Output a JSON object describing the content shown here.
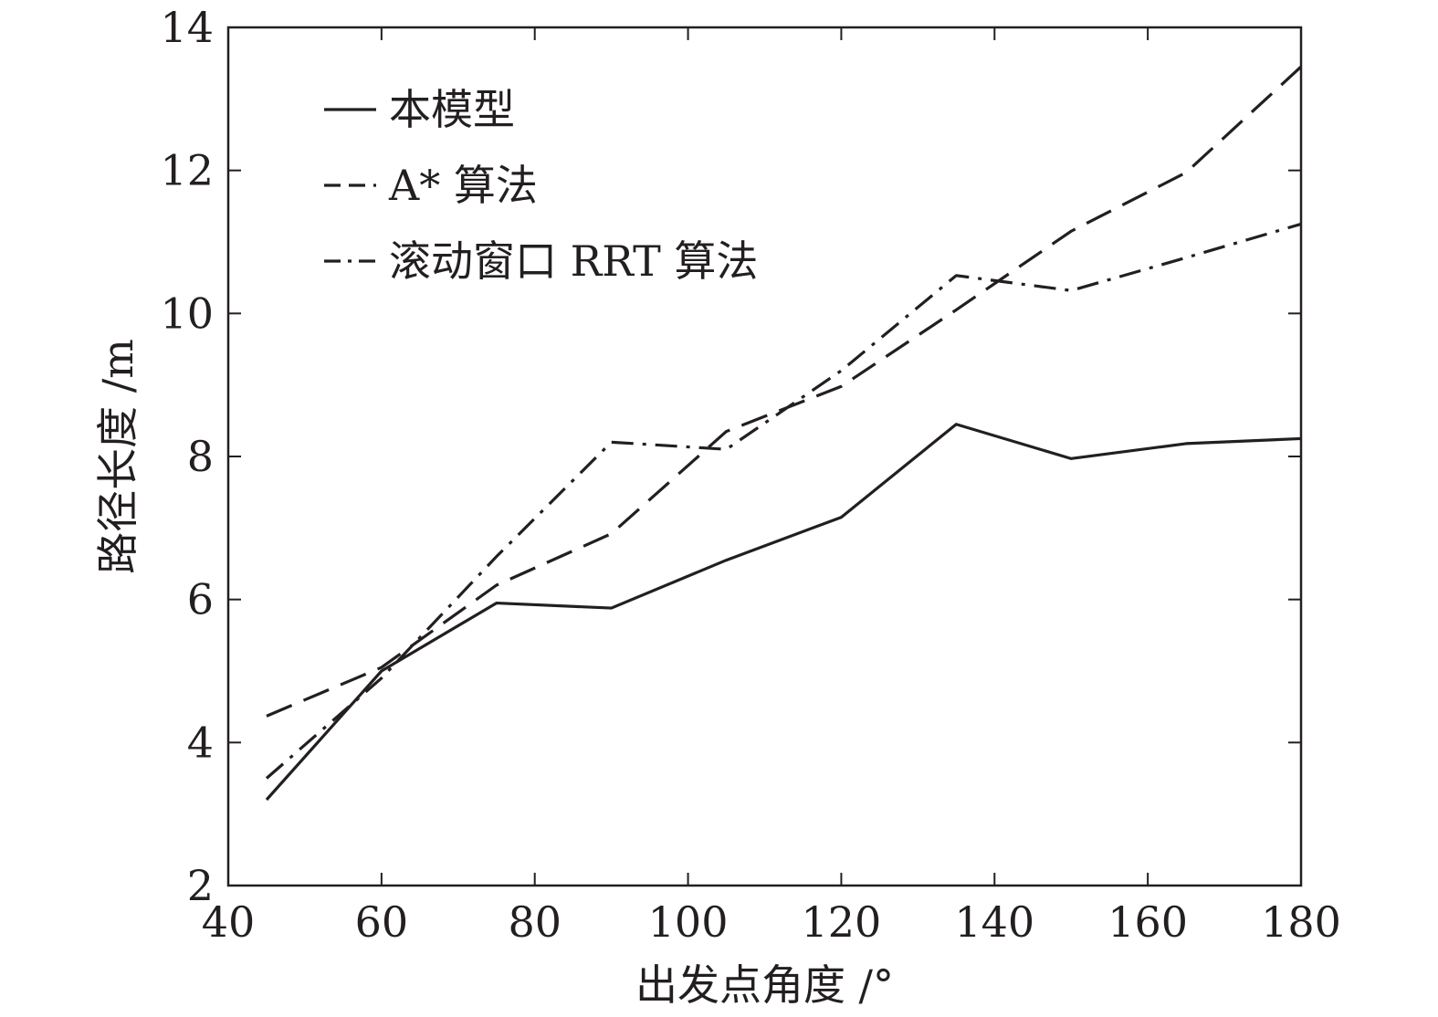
{
  "chart_data": {
    "type": "line",
    "xlabel": "出发点角度 /°",
    "ylabel": "路径长度 /m",
    "xlim": [
      40,
      180
    ],
    "ylim": [
      2,
      14
    ],
    "x_ticks": [
      40,
      60,
      80,
      100,
      120,
      140,
      160,
      180
    ],
    "y_ticks": [
      2,
      4,
      6,
      8,
      10,
      12,
      14
    ],
    "grid": false,
    "legend_position": "top-left",
    "x": [
      45,
      60,
      75,
      90,
      105,
      120,
      135,
      150,
      165,
      180
    ],
    "series": [
      {
        "name": "本模型",
        "style": "solid",
        "values": [
          3.2,
          5.0,
          5.95,
          5.88,
          6.55,
          7.15,
          8.45,
          7.97,
          8.18,
          8.25
        ]
      },
      {
        "name": "A* 算法",
        "style": "dashed",
        "values": [
          4.37,
          5.05,
          6.2,
          6.92,
          8.35,
          8.98,
          10.05,
          11.15,
          11.97,
          13.45
        ]
      },
      {
        "name": "滚动窗口 RRT 算法",
        "style": "dashdot",
        "values": [
          3.5,
          4.9,
          6.6,
          8.2,
          8.1,
          9.2,
          10.53,
          10.32,
          10.78,
          11.25
        ]
      }
    ],
    "line_color": "#231f20"
  }
}
